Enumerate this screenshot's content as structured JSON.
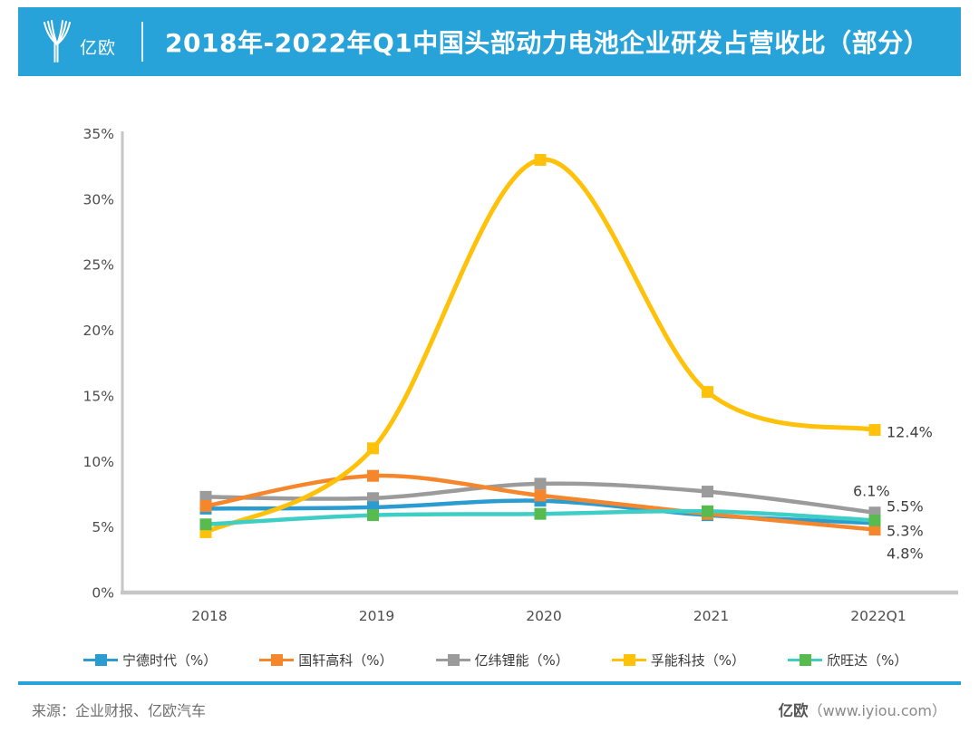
{
  "header": {
    "logo_text": "亿欧",
    "title": "2018年-2022年Q1中国头部动力电池企业研发占营收比（部分）",
    "banner_color": "#28A3DA"
  },
  "chart_data": {
    "type": "line",
    "title": "2018年-2022年Q1中国头部动力电池企业研发占营收比（部分）",
    "categories": [
      "2018",
      "2019",
      "2020",
      "2021",
      "2022Q1"
    ],
    "y_ticks": [
      "0%",
      "5%",
      "10%",
      "15%",
      "20%",
      "25%",
      "30%",
      "35%"
    ],
    "ylim": [
      0,
      35
    ],
    "grid": false,
    "legend_position": "bottom",
    "axis_color": "#c6c6c6",
    "tick_label_color": "#4d4d4d",
    "end_label_color": "#3f3f3f",
    "series": [
      {
        "key": "catl",
        "name": "宁德时代（%）",
        "line_color": "#2B9CD0",
        "marker_color": "#2B9CD0",
        "values": [
          6.4,
          6.5,
          7.0,
          5.9,
          5.3
        ],
        "end_label": "5.3%"
      },
      {
        "key": "gotion",
        "name": "国轩高科（%）",
        "line_color": "#F5862C",
        "marker_color": "#F5862C",
        "values": [
          6.6,
          8.9,
          7.4,
          6.0,
          4.8
        ],
        "end_label": "4.8%"
      },
      {
        "key": "eve",
        "name": "亿纬锂能（%）",
        "line_color": "#9B9B9B",
        "marker_color": "#9B9B9B",
        "values": [
          7.3,
          7.2,
          8.3,
          7.7,
          6.1
        ],
        "end_label": "6.1%"
      },
      {
        "key": "farasis",
        "name": "孚能科技（%）",
        "line_color": "#FFC10A",
        "marker_color": "#FFC10A",
        "values": [
          4.6,
          11.0,
          33.0,
          15.3,
          12.4
        ],
        "end_label": "12.4%"
      },
      {
        "key": "sunwoda",
        "name": "欣旺达（%）",
        "line_color": "#3FCEC5",
        "marker_color": "#57BB50",
        "values": [
          5.2,
          5.9,
          6.0,
          6.2,
          5.5
        ],
        "end_label": "5.5%"
      }
    ]
  },
  "footer": {
    "source": "来源：企业财报、亿欧汽车",
    "brand": "亿欧",
    "brand_site": "（www.iyiou.com）"
  }
}
